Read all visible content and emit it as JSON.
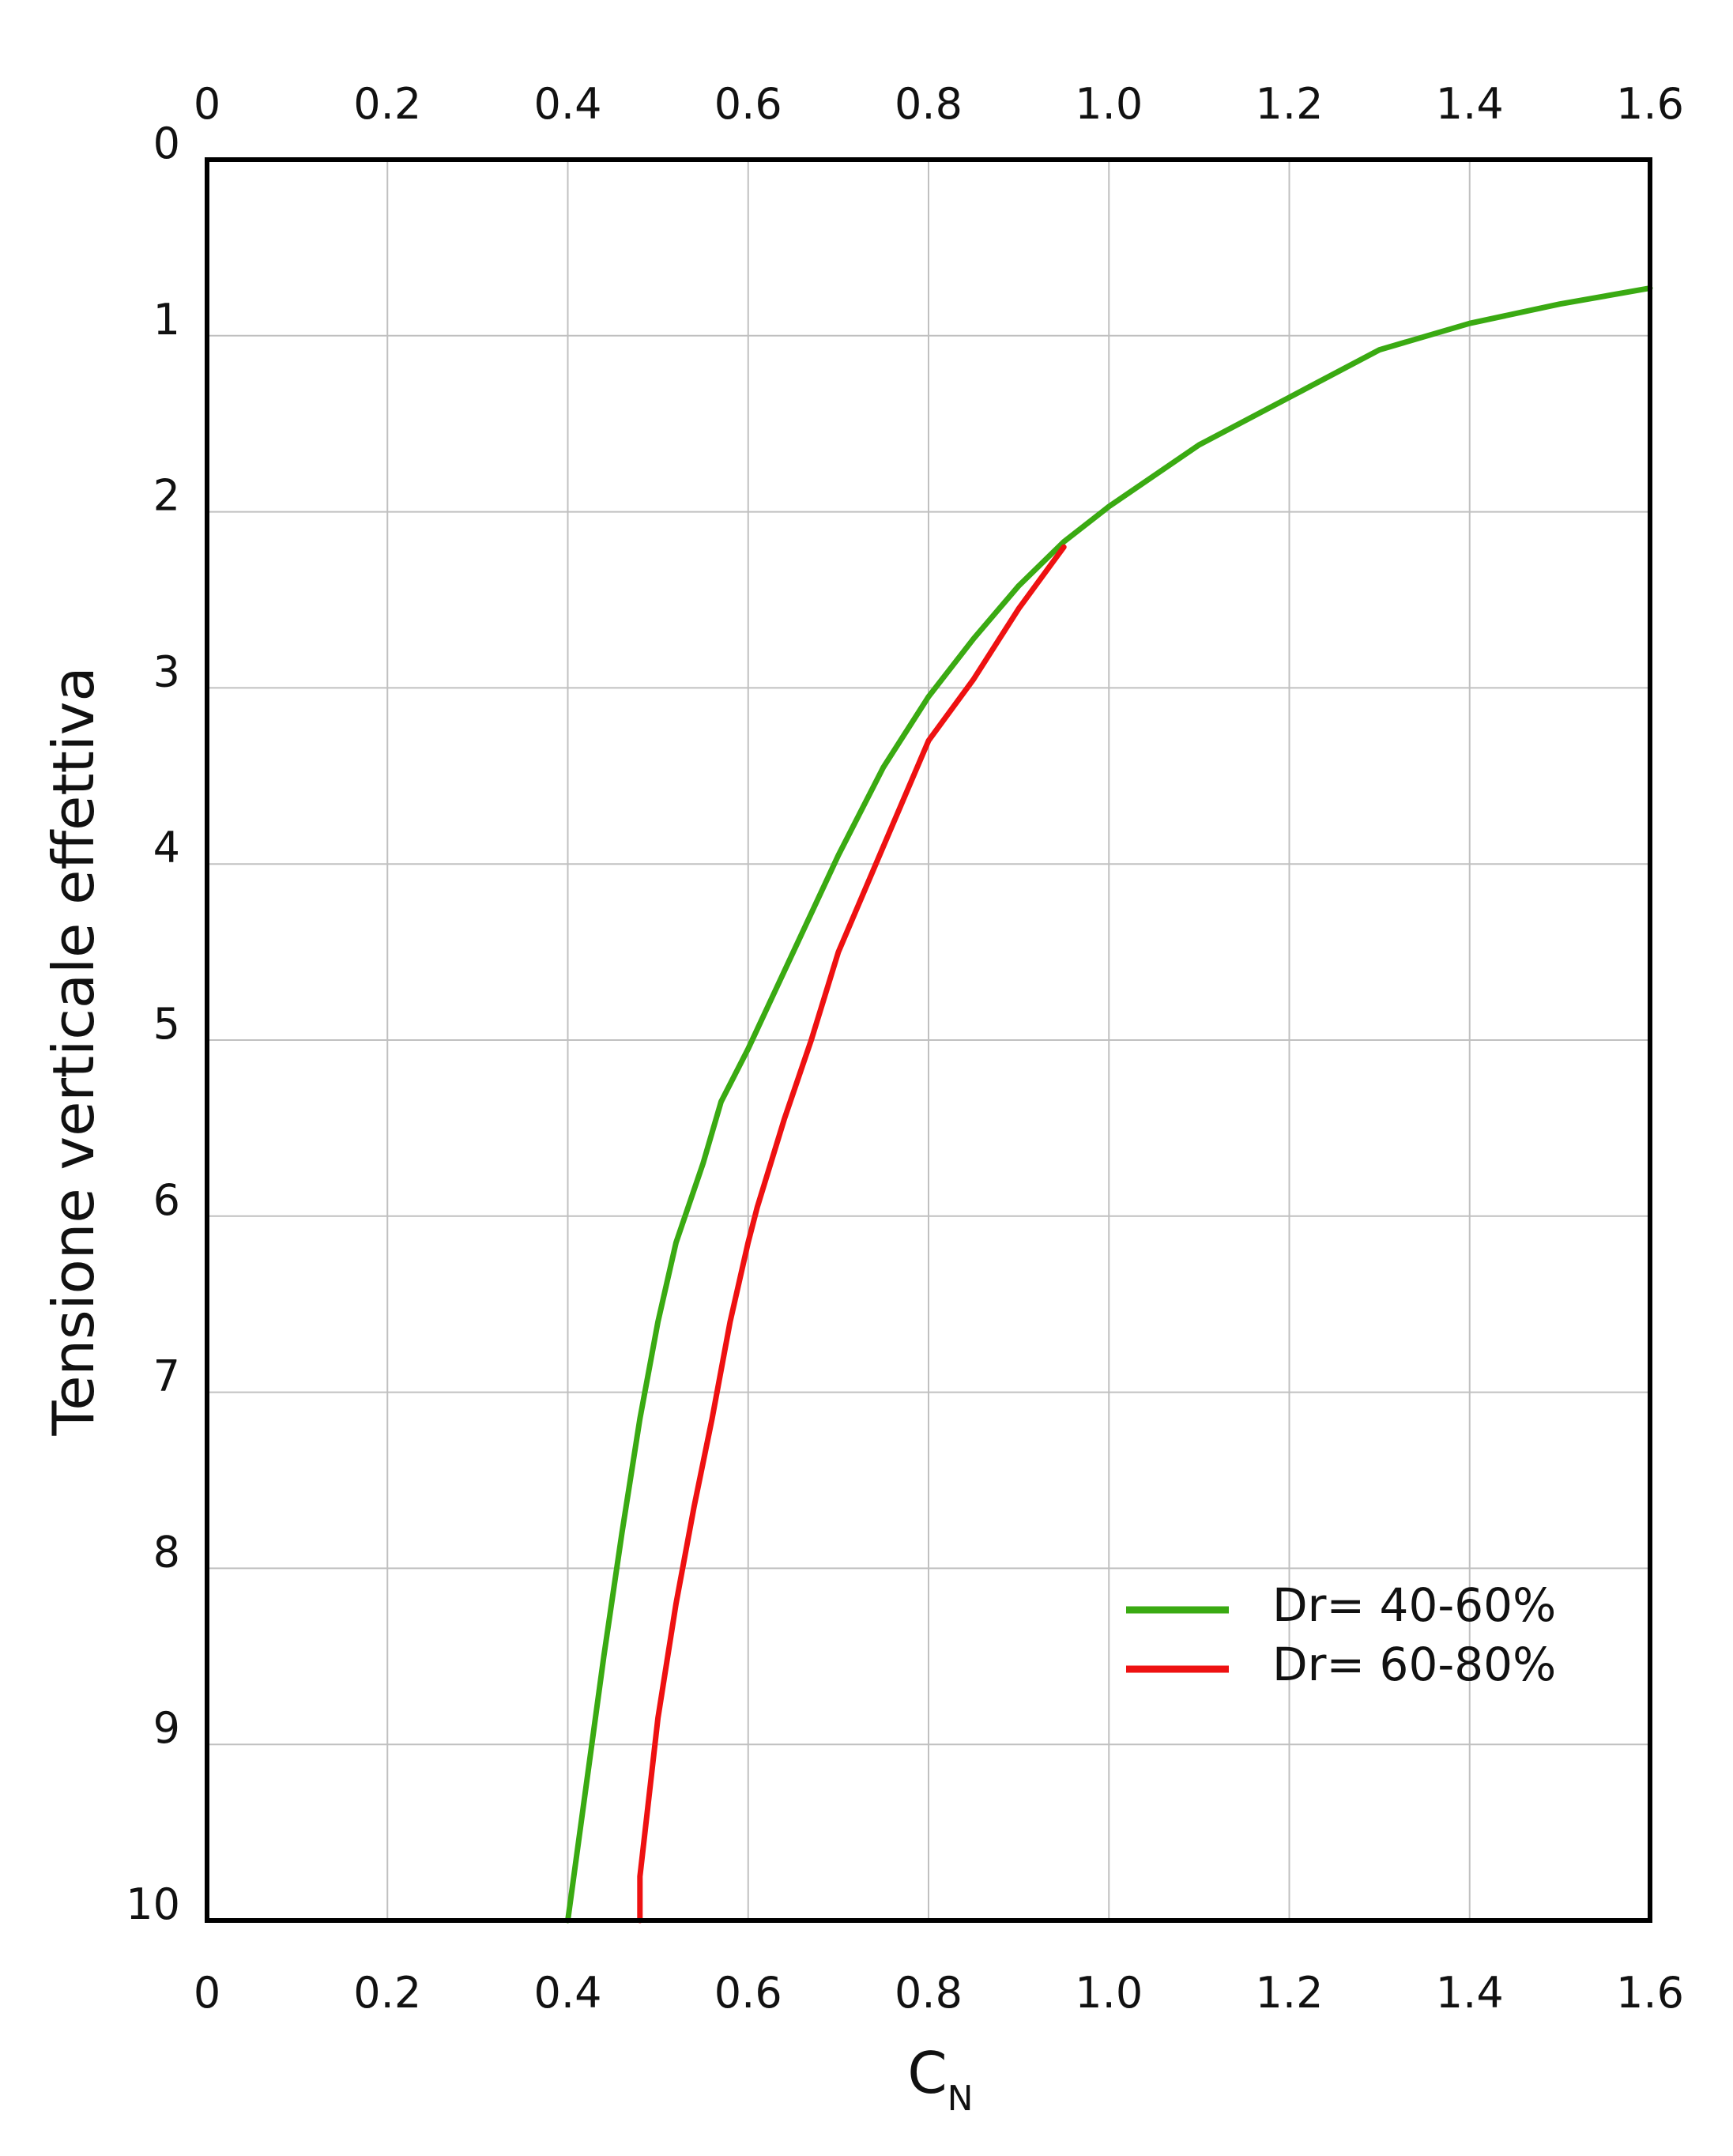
{
  "chart_data": {
    "type": "line",
    "title": "",
    "xlabel": "C",
    "xlabel_subscript": "N",
    "ylabel": "Tensione verticale effettiva",
    "xlim": [
      0,
      1.6
    ],
    "ylim": [
      0,
      10
    ],
    "y_inverted": true,
    "x_axis_positions": [
      "top",
      "bottom"
    ],
    "grid": true,
    "legend_position": "bottom-right",
    "x_ticks": [
      "0",
      "0.2",
      "0.4",
      "0.6",
      "0.8",
      "1.0",
      "1.2",
      "1.4",
      "1.6"
    ],
    "y_ticks": [
      "0",
      "1",
      "2",
      "3",
      "4",
      "5",
      "6",
      "7",
      "8",
      "9",
      "10"
    ],
    "series": [
      {
        "name": "Dr= 40-60%",
        "color": "#3aaa12",
        "x": [
          1.6,
          1.5,
          1.4,
          1.3,
          1.2,
          1.1,
          1.0,
          0.95,
          0.9,
          0.85,
          0.8,
          0.75,
          0.7,
          0.65,
          0.6,
          0.57,
          0.55,
          0.52,
          0.5,
          0.48,
          0.46,
          0.44,
          0.42,
          0.4
        ],
        "y": [
          0.73,
          0.82,
          0.93,
          1.08,
          1.35,
          1.62,
          1.97,
          2.17,
          2.42,
          2.72,
          3.05,
          3.45,
          3.95,
          4.5,
          5.05,
          5.35,
          5.7,
          6.15,
          6.6,
          7.15,
          7.8,
          8.5,
          9.25,
          10.0
        ]
      },
      {
        "name": "Dr= 60-80%",
        "color": "#ee1111",
        "x": [
          0.95,
          0.9,
          0.85,
          0.8,
          0.75,
          0.7,
          0.67,
          0.64,
          0.61,
          0.6,
          0.58,
          0.56,
          0.54,
          0.52,
          0.5,
          0.49,
          0.48,
          0.48
        ],
        "y": [
          2.2,
          2.55,
          2.95,
          3.3,
          3.9,
          4.5,
          5.0,
          5.45,
          5.95,
          6.15,
          6.6,
          7.15,
          7.65,
          8.2,
          8.85,
          9.3,
          9.75,
          10.0
        ]
      }
    ]
  }
}
